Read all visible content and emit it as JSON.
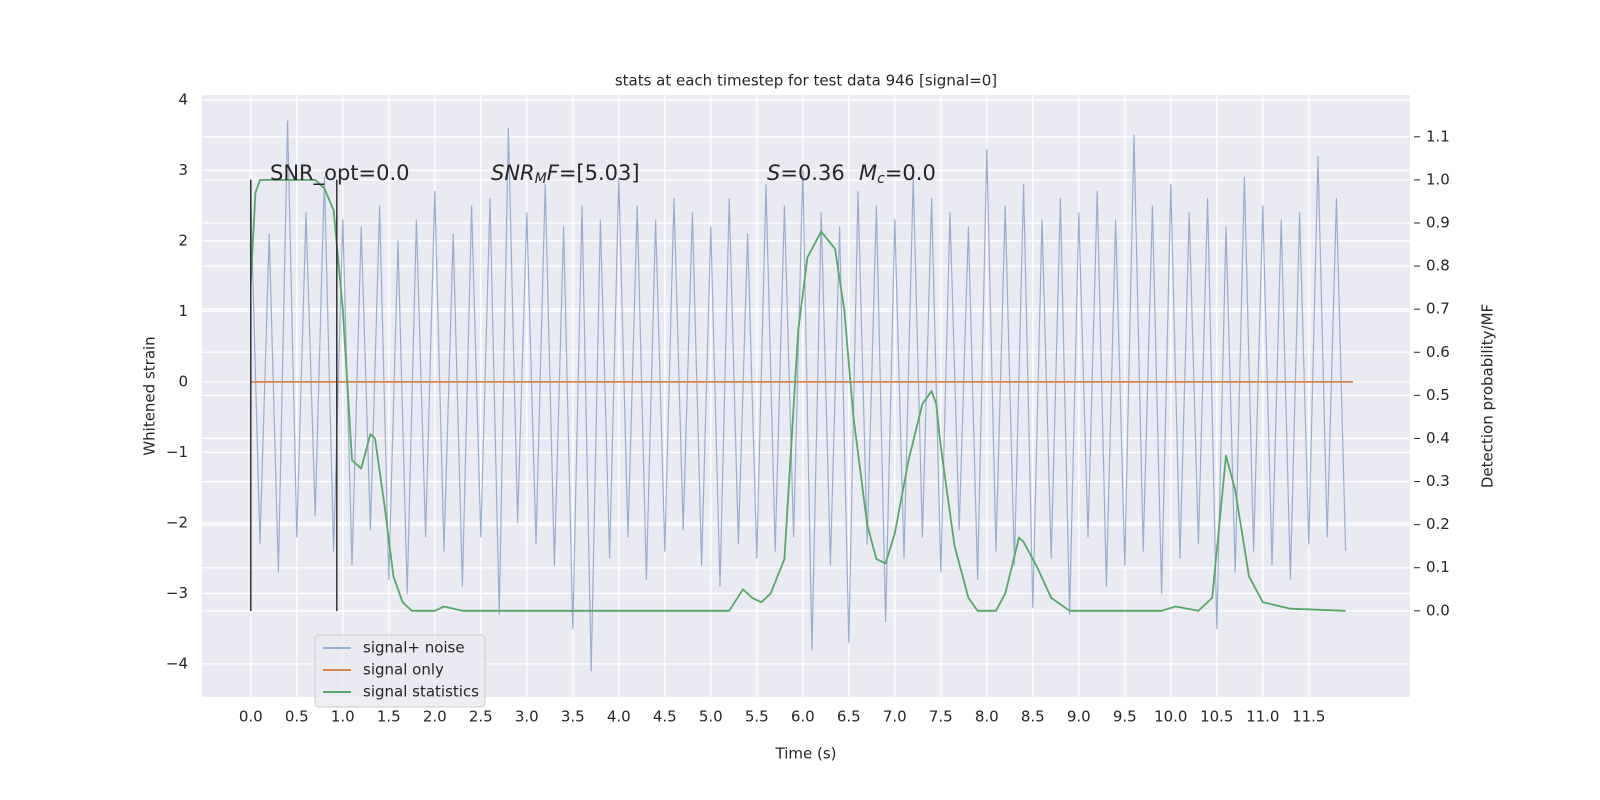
{
  "chart_data": {
    "type": "line",
    "title": "stats at each timestep for test data 946 [signal=0]",
    "xlabel": "Time (s)",
    "ylabel": "Whitened strain",
    "y2label": "Detection probability/MF",
    "background": "#eaeaf2",
    "grid": true,
    "legend": "lower left",
    "xlim": [
      -0.53,
      12.6
    ],
    "ylim": [
      -4.47,
      4.07
    ],
    "y2lim": [
      -0.2,
      1.197
    ],
    "xticks": [
      {
        "value": 0,
        "label": "0.0"
      },
      {
        "value": 0.5,
        "label": "0.5"
      },
      {
        "value": 1,
        "label": "1.0"
      },
      {
        "value": 1.5,
        "label": "1.5"
      },
      {
        "value": 2,
        "label": "2.0"
      },
      {
        "value": 2.5,
        "label": "2.5"
      },
      {
        "value": 3,
        "label": "3.0"
      },
      {
        "value": 3.5,
        "label": "3.5"
      },
      {
        "value": 4,
        "label": "4.0"
      },
      {
        "value": 4.5,
        "label": "4.5"
      },
      {
        "value": 5,
        "label": "5.0"
      },
      {
        "value": 5.5,
        "label": "5.5"
      },
      {
        "value": 6,
        "label": "6.0"
      },
      {
        "value": 6.5,
        "label": "6.5"
      },
      {
        "value": 7,
        "label": "7.0"
      },
      {
        "value": 7.5,
        "label": "7.5"
      },
      {
        "value": 8,
        "label": "8.0"
      },
      {
        "value": 8.5,
        "label": "8.5"
      },
      {
        "value": 9,
        "label": "9.0"
      },
      {
        "value": 9.5,
        "label": "9.5"
      },
      {
        "value": 10,
        "label": "10.0"
      },
      {
        "value": 10.5,
        "label": "10.5"
      },
      {
        "value": 11,
        "label": "11.0"
      },
      {
        "value": 11.5,
        "label": "11.5"
      }
    ],
    "yticks": [
      {
        "value": -4,
        "label": "−4"
      },
      {
        "value": -3,
        "label": "−3"
      },
      {
        "value": -2,
        "label": "−2"
      },
      {
        "value": -1,
        "label": "−1"
      },
      0,
      1,
      2,
      3,
      4
    ],
    "y2ticks": [
      {
        "value": 0,
        "label": "0.0"
      },
      {
        "value": 0.1,
        "label": "0.1"
      },
      {
        "value": 0.2,
        "label": "0.2"
      },
      {
        "value": 0.3,
        "label": "0.3"
      },
      {
        "value": 0.4,
        "label": "0.4"
      },
      {
        "value": 0.5,
        "label": "0.5"
      },
      {
        "value": 0.6,
        "label": "0.6"
      },
      {
        "value": 0.7,
        "label": "0.7"
      },
      {
        "value": 0.8,
        "label": "0.8"
      },
      {
        "value": 0.9,
        "label": "0.9"
      },
      {
        "value": 1,
        "label": "1.0"
      },
      {
        "value": 1.1,
        "label": "1.1"
      }
    ],
    "series": [
      {
        "name": "signal+ noise",
        "color": "#9aaed2",
        "x": [
          0.0,
          0.1,
          0.2,
          0.3,
          0.4,
          0.5,
          0.6,
          0.7,
          0.8,
          0.9,
          1.0,
          1.1,
          1.2,
          1.3,
          1.4,
          1.5,
          1.6,
          1.7,
          1.8,
          1.9,
          2.0,
          2.1,
          2.2,
          2.3,
          2.4,
          2.5,
          2.6,
          2.7,
          2.8,
          2.9,
          3.0,
          3.1,
          3.2,
          3.3,
          3.4,
          3.5,
          3.6,
          3.7,
          3.8,
          3.9,
          4.0,
          4.1,
          4.2,
          4.3,
          4.4,
          4.5,
          4.6,
          4.7,
          4.8,
          4.9,
          5.0,
          5.1,
          5.2,
          5.3,
          5.4,
          5.5,
          5.6,
          5.7,
          5.8,
          5.9,
          6.0,
          6.1,
          6.2,
          6.3,
          6.4,
          6.5,
          6.6,
          6.7,
          6.8,
          6.9,
          7.0,
          7.1,
          7.2,
          7.3,
          7.4,
          7.5,
          7.6,
          7.7,
          7.8,
          7.9,
          8.0,
          8.1,
          8.2,
          8.3,
          8.4,
          8.5,
          8.6,
          8.7,
          8.8,
          8.9,
          9.0,
          9.1,
          9.2,
          9.3,
          9.4,
          9.5,
          9.6,
          9.7,
          9.8,
          9.9,
          10.0,
          10.1,
          10.2,
          10.3,
          10.4,
          10.5,
          10.6,
          10.7,
          10.8,
          10.9,
          11.0,
          11.1,
          11.2,
          11.3,
          11.4,
          11.5,
          11.6,
          11.7,
          11.8,
          11.9
        ],
        "values": [
          2.6,
          -2.3,
          2.1,
          -2.7,
          3.7,
          -2.2,
          2.4,
          -1.9,
          2.9,
          -2.4,
          2.3,
          -2.6,
          2.2,
          -2.1,
          2.5,
          -2.8,
          2.0,
          -3.0,
          2.3,
          -2.2,
          2.7,
          -2.4,
          2.1,
          -2.9,
          2.5,
          -2.2,
          2.6,
          -3.3,
          3.6,
          -2.0,
          2.4,
          -2.3,
          2.8,
          -2.6,
          2.2,
          -3.5,
          2.5,
          -4.1,
          2.3,
          -2.5,
          2.9,
          -2.2,
          2.5,
          -2.8,
          2.3,
          -2.4,
          2.6,
          -2.1,
          2.4,
          -2.6,
          2.2,
          -2.9,
          2.6,
          -2.3,
          2.1,
          -2.5,
          2.8,
          -2.4,
          2.5,
          -2.2,
          3.0,
          -3.8,
          2.4,
          -2.6,
          2.2,
          -3.7,
          2.7,
          -2.3,
          2.5,
          -3.4,
          2.3,
          -2.5,
          2.9,
          -2.2,
          2.6,
          -2.7,
          2.4,
          -2.1,
          2.2,
          -2.8,
          3.3,
          -2.4,
          2.5,
          -2.6,
          2.8,
          -3.2,
          2.3,
          -2.5,
          2.6,
          -3.3,
          2.4,
          -2.2,
          2.7,
          -2.9,
          2.3,
          -2.6,
          3.5,
          -2.4,
          2.5,
          -3.0,
          2.8,
          -2.5,
          2.4,
          -2.3,
          2.6,
          -3.5,
          2.2,
          -2.7,
          2.9,
          -2.4,
          2.5,
          -2.6,
          2.3,
          -2.8,
          2.4,
          -2.3,
          3.2,
          -2.2,
          2.6,
          -2.4
        ]
      },
      {
        "name": "signal only",
        "color": "#dd8452",
        "x": [
          0,
          11.98
        ],
        "values": [
          0,
          0
        ]
      },
      {
        "name": "signal statistics",
        "color": "#55a868",
        "axis": "y2",
        "x": [
          0,
          0.05,
          0.1,
          0.3,
          0.5,
          0.7,
          0.8,
          0.9,
          1.0,
          1.1,
          1.2,
          1.3,
          1.35,
          1.45,
          1.55,
          1.65,
          1.75,
          2.0,
          2.1,
          2.3,
          3.0,
          4.0,
          5.0,
          5.2,
          5.35,
          5.45,
          5.55,
          5.65,
          5.8,
          5.95,
          6.05,
          6.2,
          6.35,
          6.45,
          6.55,
          6.7,
          6.8,
          6.9,
          7.0,
          7.15,
          7.3,
          7.4,
          7.45,
          7.5,
          7.65,
          7.8,
          7.9,
          8.1,
          8.2,
          8.35,
          8.4,
          8.55,
          8.7,
          8.9,
          9.5,
          9.9,
          10.05,
          10.3,
          10.45,
          10.55,
          10.6,
          10.7,
          10.85,
          11.0,
          11.3,
          11.9
        ],
        "values": [
          0.76,
          0.97,
          1.0,
          1.0,
          1.0,
          1.0,
          0.98,
          0.93,
          0.7,
          0.35,
          0.33,
          0.41,
          0.4,
          0.25,
          0.08,
          0.02,
          0.0,
          0.0,
          0.01,
          0.0,
          0.0,
          0.0,
          0.0,
          0.0,
          0.05,
          0.03,
          0.02,
          0.04,
          0.12,
          0.65,
          0.82,
          0.88,
          0.84,
          0.7,
          0.45,
          0.2,
          0.12,
          0.11,
          0.18,
          0.35,
          0.48,
          0.51,
          0.48,
          0.38,
          0.15,
          0.03,
          0.0,
          0.0,
          0.04,
          0.17,
          0.16,
          0.1,
          0.03,
          0.0,
          0.0,
          0.0,
          0.01,
          0.0,
          0.03,
          0.25,
          0.36,
          0.28,
          0.08,
          0.02,
          0.005,
          0.0
        ]
      }
    ],
    "vlines": {
      "color": "#333333",
      "x": [
        0,
        0.935
      ],
      "ymin": -3.25,
      "ymax": 2.87
    },
    "annotations": [
      [
        {
          "text": "SNR_opt=0.0"
        }
      ],
      [
        {
          "text": "SNR",
          "italic": true
        },
        {
          "text": "M",
          "italic": true,
          "sub": true
        },
        {
          "text": "F",
          "italic": true
        },
        {
          "text": "=[5.03]"
        }
      ],
      [
        {
          "text": "S",
          "italic": true
        },
        {
          "text": "=0.36"
        }
      ],
      [
        {
          "text": "M",
          "italic": true
        },
        {
          "text": "c",
          "italic": true,
          "sub": true
        },
        {
          "text": "=0.0"
        }
      ]
    ]
  }
}
